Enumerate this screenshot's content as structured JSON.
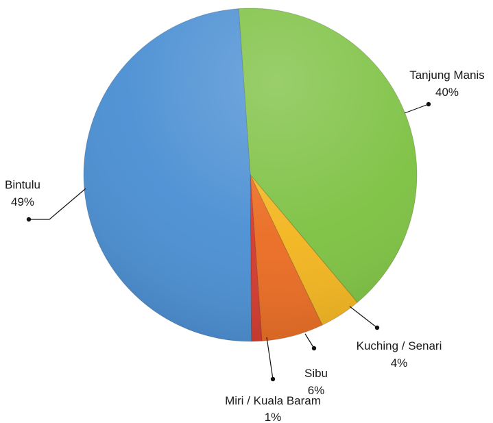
{
  "chart_data": {
    "type": "pie",
    "title": "",
    "slices": [
      {
        "label": "Tanjung Manis",
        "value": 40,
        "value_label": "40%",
        "color": "#7dc142"
      },
      {
        "label": "Kuching / Senari",
        "value": 4,
        "value_label": "4%",
        "color": "#f3b51f"
      },
      {
        "label": "Sibu",
        "value": 6,
        "value_label": "6%",
        "color": "#ea6c22"
      },
      {
        "label": "Miri / Kuala Baram",
        "value": 1,
        "value_label": "1%",
        "color": "#d43a2e"
      },
      {
        "label": "Bintulu",
        "value": 49,
        "value_label": "49%",
        "color": "#4b8fd3"
      }
    ],
    "legend": "none",
    "label_style": "leader-lines"
  }
}
